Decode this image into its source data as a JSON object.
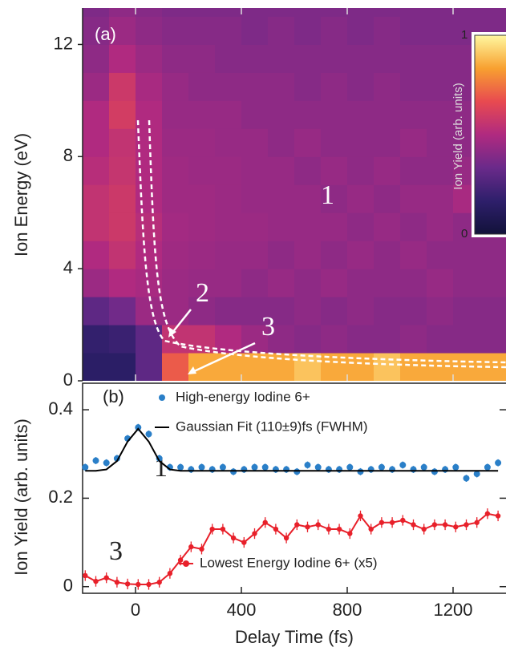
{
  "chart_data": [
    {
      "type": "heatmap",
      "ylabel": "Ion Energy (eV)",
      "x": [
        -150,
        -50,
        50,
        150,
        250,
        350,
        450,
        550,
        650,
        750,
        850,
        950,
        1050,
        1150,
        1250,
        1350
      ],
      "y": [
        0.5,
        1.5,
        2.5,
        3.5,
        4.5,
        5.5,
        6.5,
        7.5,
        8.5,
        9.5,
        10.5,
        11.5,
        12.5,
        13.5
      ],
      "z": [
        [
          0.15,
          0.15,
          0.3,
          0.7,
          0.85,
          0.85,
          0.85,
          0.85,
          0.9,
          0.85,
          0.85,
          0.9,
          0.85,
          0.85,
          0.85,
          0.85
        ],
        [
          0.18,
          0.2,
          0.3,
          0.55,
          0.55,
          0.5,
          0.45,
          0.42,
          0.4,
          0.42,
          0.4,
          0.4,
          0.42,
          0.4,
          0.4,
          0.4
        ],
        [
          0.3,
          0.35,
          0.45,
          0.45,
          0.42,
          0.4,
          0.4,
          0.4,
          0.42,
          0.4,
          0.42,
          0.4,
          0.4,
          0.42,
          0.4,
          0.4
        ],
        [
          0.45,
          0.5,
          0.48,
          0.45,
          0.44,
          0.44,
          0.42,
          0.44,
          0.42,
          0.44,
          0.42,
          0.42,
          0.42,
          0.44,
          0.42,
          0.42
        ],
        [
          0.5,
          0.55,
          0.5,
          0.46,
          0.45,
          0.44,
          0.44,
          0.42,
          0.44,
          0.42,
          0.44,
          0.42,
          0.44,
          0.42,
          0.42,
          0.42
        ],
        [
          0.55,
          0.58,
          0.52,
          0.47,
          0.46,
          0.45,
          0.45,
          0.44,
          0.44,
          0.44,
          0.42,
          0.44,
          0.42,
          0.44,
          0.42,
          0.42
        ],
        [
          0.55,
          0.58,
          0.5,
          0.46,
          0.46,
          0.45,
          0.44,
          0.44,
          0.44,
          0.42,
          0.44,
          0.42,
          0.44,
          0.44,
          0.48,
          0.42
        ],
        [
          0.52,
          0.56,
          0.5,
          0.46,
          0.45,
          0.45,
          0.44,
          0.44,
          0.42,
          0.44,
          0.42,
          0.44,
          0.42,
          0.42,
          0.44,
          0.42
        ],
        [
          0.5,
          0.55,
          0.5,
          0.45,
          0.45,
          0.44,
          0.44,
          0.42,
          0.44,
          0.42,
          0.42,
          0.42,
          0.44,
          0.42,
          0.42,
          0.42
        ],
        [
          0.5,
          0.6,
          0.5,
          0.44,
          0.44,
          0.44,
          0.42,
          0.42,
          0.42,
          0.42,
          0.42,
          0.42,
          0.42,
          0.42,
          0.42,
          0.42
        ],
        [
          0.45,
          0.58,
          0.48,
          0.44,
          0.42,
          0.42,
          0.42,
          0.42,
          0.4,
          0.42,
          0.4,
          0.42,
          0.4,
          0.4,
          0.4,
          0.4
        ],
        [
          0.42,
          0.5,
          0.45,
          0.42,
          0.42,
          0.4,
          0.4,
          0.4,
          0.4,
          0.4,
          0.4,
          0.4,
          0.4,
          0.4,
          0.4,
          0.4
        ],
        [
          0.4,
          0.45,
          0.42,
          0.4,
          0.4,
          0.4,
          0.38,
          0.4,
          0.38,
          0.4,
          0.38,
          0.4,
          0.38,
          0.38,
          0.38,
          0.38
        ],
        [
          0.38,
          0.42,
          0.4,
          0.38,
          0.38,
          0.38,
          0.38,
          0.38,
          0.38,
          0.38,
          0.38,
          0.38,
          0.38,
          0.38,
          0.38,
          0.38
        ]
      ],
      "xlim": [
        -200,
        1400
      ],
      "ylim": [
        0,
        13.3
      ],
      "xticks": [
        0,
        400,
        800,
        1200
      ],
      "yticks": [
        0,
        4,
        8,
        12
      ],
      "zlim": [
        0,
        1
      ],
      "colormap": [
        "#12123a",
        "#2e1f6b",
        "#6a2a8a",
        "#b02a80",
        "#e84a50",
        "#f8a030",
        "#fff8a0"
      ],
      "colorbar": {
        "label": "Ion Yield (arb. units)",
        "ticks": [
          0,
          1
        ]
      },
      "annotations": [
        "(a)",
        "1",
        "2",
        "3"
      ]
    },
    {
      "type": "scatter",
      "xlabel": "Delay Time (fs)",
      "ylabel": "Ion Yield (arb. units)",
      "xlim": [
        -200,
        1400
      ],
      "ylim": [
        -0.015,
        0.46
      ],
      "xticks": [
        0,
        400,
        800,
        1200
      ],
      "yticks": [
        0,
        0.2,
        0.4
      ],
      "x": [
        -190,
        -150,
        -110,
        -70,
        -30,
        10,
        50,
        90,
        130,
        170,
        210,
        250,
        290,
        330,
        370,
        410,
        450,
        490,
        530,
        570,
        610,
        650,
        690,
        730,
        770,
        810,
        850,
        890,
        930,
        970,
        1010,
        1050,
        1090,
        1130,
        1170,
        1210,
        1250,
        1290,
        1330,
        1370
      ],
      "series": [
        {
          "name": "High-energy Iodine 6+",
          "color": "#2a7fc8",
          "mode": "markers",
          "error": 0.008,
          "values": [
            0.27,
            0.285,
            0.28,
            0.29,
            0.335,
            0.36,
            0.345,
            0.29,
            0.27,
            0.27,
            0.265,
            0.27,
            0.265,
            0.27,
            0.26,
            0.265,
            0.27,
            0.27,
            0.265,
            0.265,
            0.26,
            0.275,
            0.27,
            0.265,
            0.265,
            0.27,
            0.26,
            0.265,
            0.27,
            0.265,
            0.275,
            0.265,
            0.27,
            0.26,
            0.265,
            0.27,
            0.245,
            0.255,
            0.27,
            0.28
          ]
        },
        {
          "name": "Gaussian Fit (110±9)fs (FWHM)",
          "color": "#000000",
          "mode": "line",
          "values": [
            0.262,
            0.262,
            0.265,
            0.284,
            0.328,
            0.357,
            0.328,
            0.284,
            0.265,
            0.262,
            0.262,
            0.262,
            0.262,
            0.262,
            0.262,
            0.262,
            0.262,
            0.262,
            0.262,
            0.262,
            0.262,
            0.262,
            0.262,
            0.262,
            0.262,
            0.262,
            0.262,
            0.262,
            0.262,
            0.262,
            0.262,
            0.262,
            0.262,
            0.262,
            0.262,
            0.262,
            0.262,
            0.262,
            0.262,
            0.262
          ]
        },
        {
          "name": "Lowest Energy Iodine 6+ (x5)",
          "color": "#e8202a",
          "mode": "line+markers",
          "error": 0.012,
          "values": [
            0.025,
            0.012,
            0.02,
            0.01,
            0.006,
            0.005,
            0.005,
            0.01,
            0.03,
            0.06,
            0.09,
            0.085,
            0.13,
            0.13,
            0.11,
            0.1,
            0.12,
            0.145,
            0.13,
            0.11,
            0.14,
            0.135,
            0.14,
            0.13,
            0.13,
            0.12,
            0.16,
            0.13,
            0.145,
            0.145,
            0.15,
            0.14,
            0.13,
            0.14,
            0.14,
            0.135,
            0.14,
            0.145,
            0.165,
            0.16
          ]
        }
      ],
      "annotations": [
        "(b)",
        "1",
        "3"
      ]
    }
  ]
}
